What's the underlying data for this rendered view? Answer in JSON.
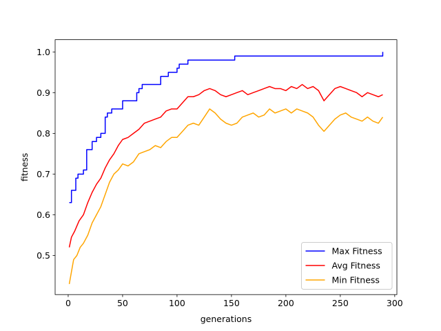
{
  "chart_data": {
    "type": "line",
    "title": "",
    "xlabel": "generations",
    "ylabel": "fitness",
    "xlim": [
      -12,
      302
    ],
    "ylim": [
      0.404,
      1.03
    ],
    "xticks": [
      0,
      50,
      100,
      150,
      200,
      250,
      300
    ],
    "yticks": [
      0.5,
      0.6,
      0.7,
      0.8,
      0.9,
      1.0
    ],
    "ytick_labels": [
      "0.5",
      "0.6",
      "0.7",
      "0.8",
      "0.9",
      "1.0"
    ],
    "legend_position": "lower-right",
    "series": [
      {
        "name": "Max Fitness",
        "color": "#0000ff",
        "step": true,
        "points": [
          [
            1,
            0.63
          ],
          [
            3,
            0.66
          ],
          [
            7,
            0.69
          ],
          [
            9,
            0.7
          ],
          [
            14,
            0.71
          ],
          [
            17,
            0.76
          ],
          [
            22,
            0.78
          ],
          [
            26,
            0.79
          ],
          [
            30,
            0.8
          ],
          [
            34,
            0.84
          ],
          [
            36,
            0.85
          ],
          [
            40,
            0.86
          ],
          [
            50,
            0.88
          ],
          [
            63,
            0.9
          ],
          [
            65,
            0.91
          ],
          [
            68,
            0.92
          ],
          [
            85,
            0.94
          ],
          [
            92,
            0.95
          ],
          [
            100,
            0.96
          ],
          [
            102,
            0.97
          ],
          [
            110,
            0.98
          ],
          [
            153,
            0.99
          ],
          [
            288,
            0.99
          ],
          [
            289,
            1.0
          ]
        ]
      },
      {
        "name": "Avg Fitness",
        "color": "#ff0000",
        "step": false,
        "points": [
          [
            1,
            0.52
          ],
          [
            3,
            0.545
          ],
          [
            6,
            0.56
          ],
          [
            10,
            0.585
          ],
          [
            14,
            0.6
          ],
          [
            18,
            0.63
          ],
          [
            22,
            0.655
          ],
          [
            26,
            0.675
          ],
          [
            30,
            0.69
          ],
          [
            34,
            0.715
          ],
          [
            38,
            0.735
          ],
          [
            42,
            0.75
          ],
          [
            46,
            0.77
          ],
          [
            50,
            0.785
          ],
          [
            55,
            0.79
          ],
          [
            60,
            0.8
          ],
          [
            65,
            0.81
          ],
          [
            70,
            0.825
          ],
          [
            75,
            0.83
          ],
          [
            80,
            0.835
          ],
          [
            85,
            0.84
          ],
          [
            90,
            0.855
          ],
          [
            95,
            0.86
          ],
          [
            100,
            0.86
          ],
          [
            105,
            0.875
          ],
          [
            110,
            0.89
          ],
          [
            115,
            0.89
          ],
          [
            120,
            0.895
          ],
          [
            125,
            0.905
          ],
          [
            130,
            0.91
          ],
          [
            135,
            0.905
          ],
          [
            140,
            0.895
          ],
          [
            145,
            0.89
          ],
          [
            150,
            0.895
          ],
          [
            155,
            0.9
          ],
          [
            160,
            0.905
          ],
          [
            165,
            0.895
          ],
          [
            170,
            0.9
          ],
          [
            175,
            0.905
          ],
          [
            180,
            0.91
          ],
          [
            185,
            0.915
          ],
          [
            190,
            0.91
          ],
          [
            195,
            0.91
          ],
          [
            200,
            0.905
          ],
          [
            205,
            0.915
          ],
          [
            210,
            0.91
          ],
          [
            215,
            0.92
          ],
          [
            220,
            0.91
          ],
          [
            225,
            0.915
          ],
          [
            230,
            0.905
          ],
          [
            235,
            0.88
          ],
          [
            240,
            0.895
          ],
          [
            245,
            0.91
          ],
          [
            250,
            0.915
          ],
          [
            255,
            0.91
          ],
          [
            260,
            0.905
          ],
          [
            265,
            0.9
          ],
          [
            270,
            0.89
          ],
          [
            275,
            0.9
          ],
          [
            280,
            0.895
          ],
          [
            285,
            0.89
          ],
          [
            289,
            0.895
          ]
        ]
      },
      {
        "name": "Min Fitness",
        "color": "#ffa500",
        "step": false,
        "points": [
          [
            1,
            0.43
          ],
          [
            3,
            0.46
          ],
          [
            5,
            0.49
          ],
          [
            8,
            0.5
          ],
          [
            11,
            0.52
          ],
          [
            14,
            0.53
          ],
          [
            18,
            0.55
          ],
          [
            22,
            0.58
          ],
          [
            26,
            0.6
          ],
          [
            30,
            0.62
          ],
          [
            34,
            0.65
          ],
          [
            38,
            0.68
          ],
          [
            42,
            0.7
          ],
          [
            46,
            0.71
          ],
          [
            50,
            0.725
          ],
          [
            55,
            0.72
          ],
          [
            60,
            0.73
          ],
          [
            65,
            0.75
          ],
          [
            70,
            0.755
          ],
          [
            75,
            0.76
          ],
          [
            80,
            0.77
          ],
          [
            85,
            0.765
          ],
          [
            90,
            0.78
          ],
          [
            95,
            0.79
          ],
          [
            100,
            0.79
          ],
          [
            105,
            0.805
          ],
          [
            110,
            0.82
          ],
          [
            115,
            0.825
          ],
          [
            120,
            0.82
          ],
          [
            125,
            0.84
          ],
          [
            130,
            0.86
          ],
          [
            135,
            0.85
          ],
          [
            140,
            0.835
          ],
          [
            145,
            0.825
          ],
          [
            150,
            0.82
          ],
          [
            155,
            0.825
          ],
          [
            160,
            0.84
          ],
          [
            165,
            0.845
          ],
          [
            170,
            0.85
          ],
          [
            175,
            0.84
          ],
          [
            180,
            0.845
          ],
          [
            185,
            0.86
          ],
          [
            190,
            0.85
          ],
          [
            195,
            0.855
          ],
          [
            200,
            0.86
          ],
          [
            205,
            0.85
          ],
          [
            210,
            0.86
          ],
          [
            215,
            0.855
          ],
          [
            220,
            0.85
          ],
          [
            225,
            0.84
          ],
          [
            230,
            0.82
          ],
          [
            235,
            0.805
          ],
          [
            240,
            0.82
          ],
          [
            245,
            0.835
          ],
          [
            250,
            0.845
          ],
          [
            255,
            0.85
          ],
          [
            260,
            0.84
          ],
          [
            265,
            0.835
          ],
          [
            270,
            0.83
          ],
          [
            275,
            0.84
          ],
          [
            280,
            0.83
          ],
          [
            285,
            0.825
          ],
          [
            289,
            0.84
          ]
        ]
      }
    ]
  }
}
